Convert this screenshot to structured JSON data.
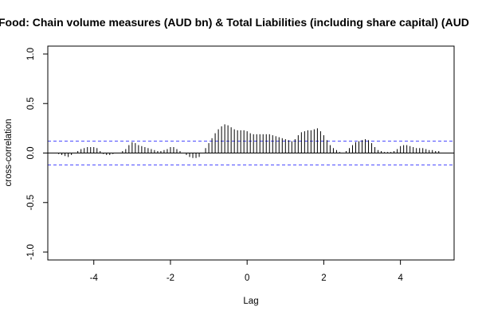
{
  "chart_data": {
    "type": "bar",
    "title": "Food: Chain volume measures (AUD bn) & Total Liabilities (including share capital) (AUD",
    "xlabel": "Lag",
    "ylabel": "cross-correlation",
    "xlim": [
      -5.2,
      5.4
    ],
    "ylim": [
      -1.08,
      1.08
    ],
    "x_ticks": [
      -4,
      -2,
      0,
      2,
      4
    ],
    "x_tick_labels": [
      "-4",
      "-2",
      "0",
      "2",
      "4"
    ],
    "y_ticks": [
      -1.0,
      -0.5,
      0.0,
      0.5,
      1.0
    ],
    "y_tick_labels": [
      "-1.0",
      "-0.5",
      "0.0",
      "0.5",
      "1.0"
    ],
    "confidence_band": [
      0.12,
      -0.12
    ],
    "band_color": "#4a4aff",
    "line_color": "#000000",
    "lag_start": -5,
    "lag_step": 0.0833333,
    "values": [
      0.0,
      -0.01,
      -0.02,
      -0.03,
      -0.04,
      -0.02,
      0.0,
      0.02,
      0.04,
      0.05,
      0.06,
      0.06,
      0.06,
      0.05,
      0.02,
      -0.01,
      -0.02,
      -0.02,
      -0.01,
      0.0,
      0.0,
      0.02,
      0.04,
      0.08,
      0.11,
      0.1,
      0.08,
      0.07,
      0.06,
      0.05,
      0.04,
      0.03,
      0.02,
      0.02,
      0.03,
      0.04,
      0.06,
      0.06,
      0.04,
      0.02,
      0.0,
      -0.02,
      -0.04,
      -0.05,
      -0.05,
      -0.04,
      0.0,
      0.05,
      0.1,
      0.15,
      0.2,
      0.24,
      0.27,
      0.29,
      0.28,
      0.26,
      0.24,
      0.23,
      0.23,
      0.23,
      0.22,
      0.2,
      0.19,
      0.19,
      0.19,
      0.19,
      0.19,
      0.19,
      0.18,
      0.17,
      0.16,
      0.15,
      0.14,
      0.13,
      0.12,
      0.14,
      0.18,
      0.21,
      0.22,
      0.23,
      0.23,
      0.24,
      0.25,
      0.22,
      0.18,
      0.13,
      0.08,
      0.05,
      0.03,
      0.01,
      0.0,
      0.02,
      0.05,
      0.08,
      0.11,
      0.12,
      0.13,
      0.14,
      0.13,
      0.1,
      0.06,
      0.03,
      0.02,
      0.01,
      0.01,
      0.01,
      0.02,
      0.04,
      0.07,
      0.08,
      0.08,
      0.07,
      0.06,
      0.05,
      0.05,
      0.05,
      0.04,
      0.03,
      0.03,
      0.02,
      0.02
    ]
  }
}
